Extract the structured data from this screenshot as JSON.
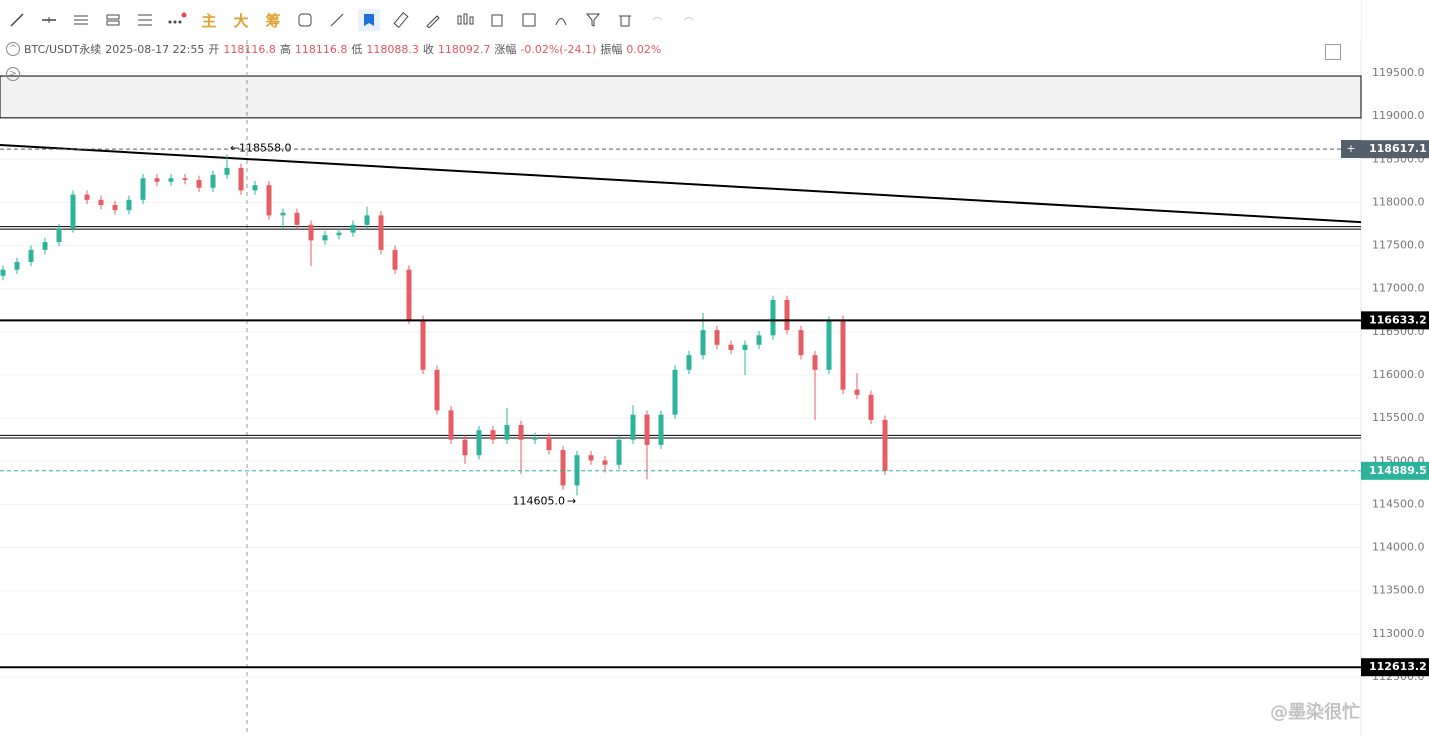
{
  "toolbar": {
    "buttons": [
      "主",
      "大",
      "筹"
    ]
  },
  "info": {
    "symbol": "BTC/USDT永续",
    "time": "2025-08-17 22:55",
    "fields": [
      {
        "key": "开",
        "value": "118116.8"
      },
      {
        "key": "高",
        "value": "118116.8"
      },
      {
        "key": "低",
        "value": "118088.3"
      },
      {
        "key": "收",
        "value": "118092.7"
      },
      {
        "key": "涨幅",
        "value": "-0.02%(-24.1)"
      },
      {
        "key": "振幅",
        "value": "0.02%"
      }
    ]
  },
  "watermark": "@墨染很忙",
  "chart_data": {
    "type": "candlestick",
    "up_color": "#2db39b",
    "down_color": "#e55d64",
    "ylim": [
      111816,
      120346
    ],
    "yticks": [
      {
        "value": 119500,
        "label": "119500.0"
      },
      {
        "value": 119000,
        "label": "119000.0"
      },
      {
        "value": 118500,
        "label": "118500.0"
      },
      {
        "value": 118000,
        "label": "118000.0"
      },
      {
        "value": 117500,
        "label": "117500.0"
      },
      {
        "value": 117000,
        "label": "117000.0"
      },
      {
        "value": 116500,
        "label": "116500.0"
      },
      {
        "value": 116000,
        "label": "116000.0"
      },
      {
        "value": 115500,
        "label": "115500.0"
      },
      {
        "value": 115000,
        "label": "115000.0"
      },
      {
        "value": 114500,
        "label": "114500.0"
      },
      {
        "value": 114000,
        "label": "114000.0"
      },
      {
        "value": 113500,
        "label": "113500.0"
      },
      {
        "value": 113000,
        "label": "113000.0"
      },
      {
        "value": 112500,
        "label": "112500.0"
      }
    ],
    "open": [
      117150,
      117220,
      117310,
      117450,
      117540,
      117700,
      118090,
      118030,
      117970,
      117910,
      118030,
      118280,
      118240,
      118280,
      118260,
      118170,
      118320,
      118400,
      118140,
      118200,
      117850,
      117880,
      117740,
      117560,
      117620,
      117650,
      117740,
      117850,
      117450,
      117220,
      116640,
      116060,
      115590,
      115250,
      115070,
      115360,
      115250,
      115420,
      115250,
      115280,
      115130,
      114720,
      115070,
      115010,
      114960,
      115250,
      115540,
      115190,
      115540,
      116060,
      116230,
      116520,
      116350,
      116290,
      116350,
      116460,
      116870,
      116520,
      116230,
      116060,
      116640,
      115830,
      115770,
      115480
    ],
    "high": [
      117270,
      117360,
      117500,
      117590,
      117750,
      118140,
      118140,
      118080,
      118020,
      118080,
      118330,
      118330,
      118330,
      118330,
      118310,
      118370,
      118558,
      118450,
      118250,
      118250,
      117930,
      117930,
      117790,
      117670,
      117700,
      117790,
      117950,
      117900,
      117500,
      117270,
      116690,
      116110,
      115640,
      115300,
      115410,
      115410,
      115620,
      115470,
      115330,
      115330,
      115180,
      115120,
      115120,
      115060,
      115300,
      115650,
      115590,
      115590,
      116110,
      116280,
      116720,
      116570,
      116400,
      116400,
      116510,
      116920,
      116920,
      116570,
      116280,
      116680,
      116690,
      116020,
      115820,
      115530
    ],
    "low": [
      117100,
      117170,
      117260,
      117400,
      117490,
      117650,
      117980,
      117920,
      117860,
      117860,
      117980,
      118190,
      118190,
      118210,
      118120,
      118120,
      118270,
      118090,
      118090,
      117800,
      117700,
      117690,
      117260,
      117510,
      117570,
      117600,
      117690,
      117400,
      117170,
      116590,
      116010,
      115540,
      115200,
      114970,
      115020,
      115200,
      115200,
      114850,
      115200,
      115080,
      114670,
      114605,
      114960,
      114870,
      114910,
      115200,
      114790,
      115140,
      115490,
      116010,
      116180,
      116300,
      116240,
      116000,
      116300,
      116410,
      116470,
      116180,
      115480,
      116010,
      115780,
      115720,
      115430,
      114840
    ],
    "close": [
      117220,
      117310,
      117450,
      117540,
      117700,
      118090,
      118030,
      117970,
      117910,
      118030,
      118280,
      118240,
      118280,
      118260,
      118170,
      118320,
      118400,
      118140,
      118200,
      117850,
      117880,
      117740,
      117560,
      117620,
      117650,
      117740,
      117850,
      117450,
      117220,
      116640,
      116060,
      115590,
      115250,
      115070,
      115360,
      115250,
      115420,
      115250,
      115280,
      115130,
      114720,
      115070,
      115010,
      114960,
      115250,
      115540,
      115190,
      115540,
      116060,
      116230,
      116520,
      116350,
      116290,
      116350,
      116460,
      116870,
      116520,
      116230,
      116060,
      116640,
      115830,
      115770,
      115480,
      114890
    ],
    "zone": [
      118980,
      119465
    ],
    "trendline": [
      118665,
      117772
    ],
    "hlines": [
      117720,
      117690,
      115300,
      115270
    ],
    "price_lines": [
      {
        "value": 118617.1,
        "label": "118617.1",
        "color": "#555e6b",
        "dashed": true
      },
      {
        "value": 116633.2,
        "label": "116633.2",
        "color": "#000000",
        "dashed": false
      },
      {
        "value": 114889.5,
        "label": "114889.5",
        "color": "#2db39b",
        "dashed": true
      },
      {
        "value": 112613.2,
        "label": "112613.2",
        "color": "#000000",
        "dashed": false
      }
    ],
    "high_marker": {
      "value": 118558,
      "label": "118558.0",
      "index": 16
    },
    "low_marker": {
      "value": 114605,
      "label": "114605.0",
      "index": 41
    }
  }
}
